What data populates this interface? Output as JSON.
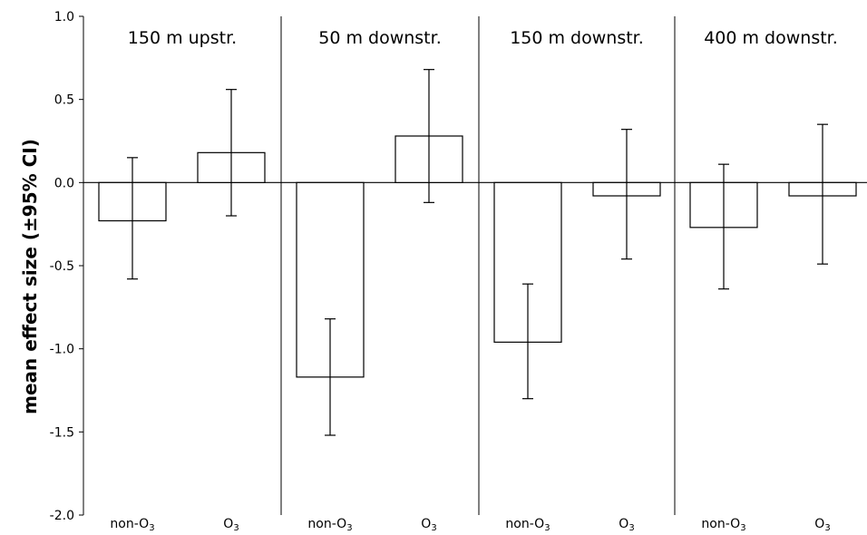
{
  "chart_data": {
    "type": "bar",
    "title": "",
    "xlabel": "",
    "ylabel": "mean effect size (±95% CI)",
    "ylim": [
      -2.0,
      1.0
    ],
    "yticks": [
      "1.0",
      "0.5",
      "0.0",
      "-0.5",
      "-1.0",
      "-1.5",
      "-2.0"
    ],
    "grid": false,
    "legend": "none",
    "panels": [
      {
        "title": "150 m upstr.",
        "bars": [
          {
            "label_main": "non-O",
            "label_sub": "3",
            "value": -0.23,
            "ci_low": -0.58,
            "ci_high": 0.15
          },
          {
            "label_main": "O",
            "label_sub": "3",
            "value": 0.18,
            "ci_low": -0.2,
            "ci_high": 0.56
          }
        ]
      },
      {
        "title": "50 m downstr.",
        "bars": [
          {
            "label_main": "non-O",
            "label_sub": "3",
            "value": -1.17,
            "ci_low": -1.52,
            "ci_high": -0.82
          },
          {
            "label_main": "O",
            "label_sub": "3",
            "value": 0.28,
            "ci_low": -0.12,
            "ci_high": 0.68
          }
        ]
      },
      {
        "title": "150 m downstr.",
        "bars": [
          {
            "label_main": "non-O",
            "label_sub": "3",
            "value": -0.96,
            "ci_low": -1.3,
            "ci_high": -0.61
          },
          {
            "label_main": "O",
            "label_sub": "3",
            "value": -0.08,
            "ci_low": -0.46,
            "ci_high": 0.32
          }
        ]
      },
      {
        "title": "400 m downstr.",
        "bars": [
          {
            "label_main": "non-O",
            "label_sub": "3",
            "value": -0.27,
            "ci_low": -0.64,
            "ci_high": 0.11
          },
          {
            "label_main": "O",
            "label_sub": "3",
            "value": -0.08,
            "ci_low": -0.49,
            "ci_high": 0.35
          }
        ]
      }
    ]
  }
}
